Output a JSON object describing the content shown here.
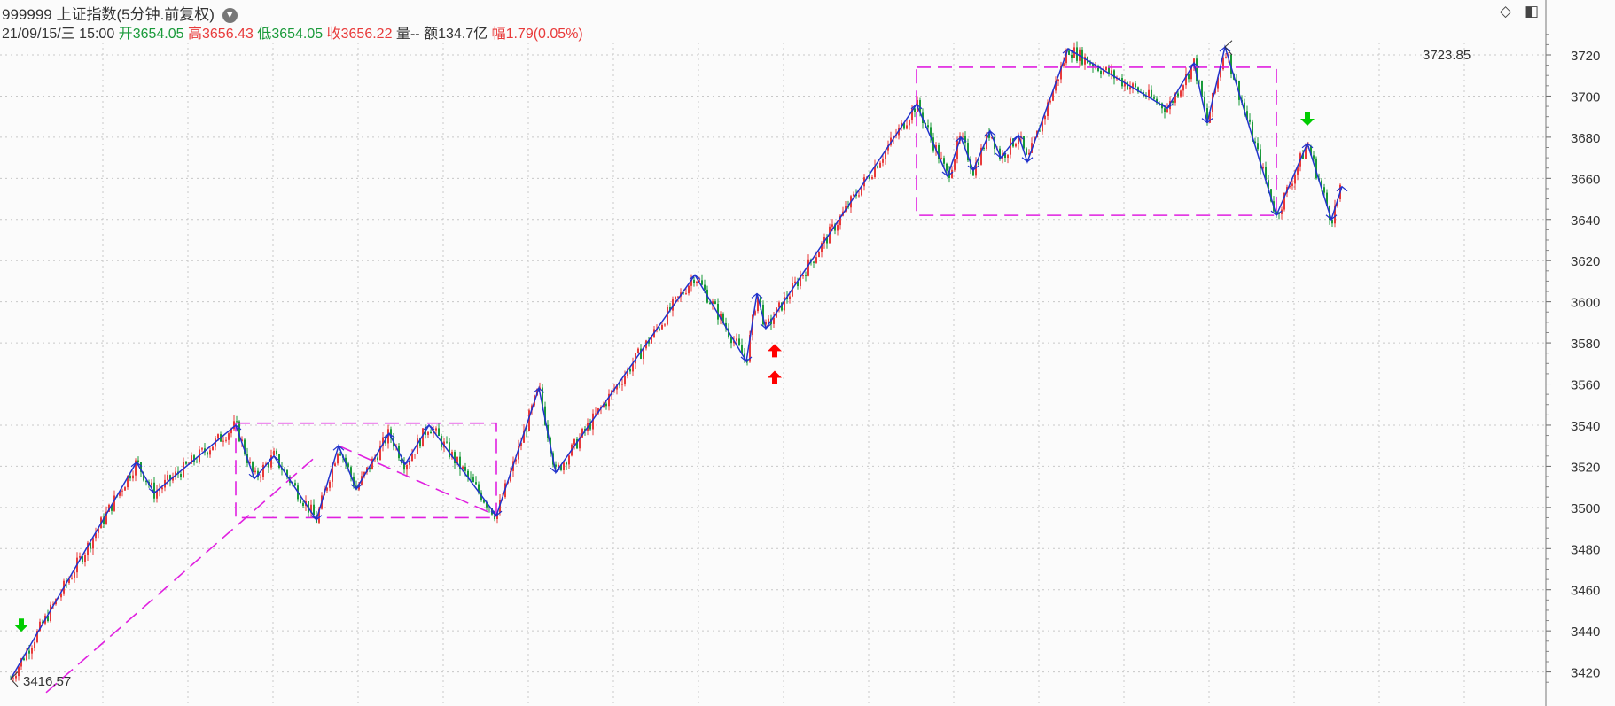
{
  "header": {
    "code": "999999",
    "name": "上证指数",
    "period": "(5分钟.前复权)",
    "date": "21/09/15/三 15:00",
    "open_label": "开",
    "open": "3654.05",
    "high_label": "高",
    "high": "3656.43",
    "low_label": "低",
    "low": "3654.05",
    "close_label": "收",
    "close": "3656.22",
    "volume_label": "量",
    "volume": "--",
    "amount_label": "额",
    "amount": "134.7亿",
    "change_label": "幅",
    "change": "1.79(0.05%)"
  },
  "toolbar": {
    "diamond_icon": "diamond-icon",
    "panel_icon": "panel-toggle-icon"
  },
  "colors": {
    "up": "#e83a3a",
    "down": "#1a9a3a",
    "zigzag": "#2233cc",
    "pattern": "#e020e0",
    "grid": "#c8c8c8",
    "signal_up": "#ff0000",
    "signal_down": "#00cc00"
  },
  "chart_data": {
    "type": "candlestick",
    "ylim": [
      3410,
      3730
    ],
    "yticks": [
      3420,
      3440,
      3460,
      3480,
      3500,
      3520,
      3540,
      3560,
      3580,
      3600,
      3620,
      3640,
      3660,
      3680,
      3700,
      3720
    ],
    "grid": true,
    "annotations": {
      "low_label": "3416.57",
      "high_label": "3723.85"
    },
    "zigzag": [
      [
        0,
        3416.57
      ],
      [
        142,
        3522
      ],
      [
        162,
        3507
      ],
      [
        254,
        3540
      ],
      [
        275,
        3514
      ],
      [
        297,
        3525
      ],
      [
        345,
        3494
      ],
      [
        370,
        3530
      ],
      [
        390,
        3509
      ],
      [
        427,
        3536
      ],
      [
        445,
        3521
      ],
      [
        472,
        3540
      ],
      [
        548,
        3496
      ],
      [
        596,
        3558
      ],
      [
        615,
        3517
      ],
      [
        772,
        3613
      ],
      [
        830,
        3571
      ],
      [
        842,
        3604
      ],
      [
        852,
        3587
      ],
      [
        1022,
        3696
      ],
      [
        1057,
        3661
      ],
      [
        1072,
        3680
      ],
      [
        1086,
        3664
      ],
      [
        1105,
        3683
      ],
      [
        1117,
        3670
      ],
      [
        1137,
        3681
      ],
      [
        1147,
        3668
      ],
      [
        1193,
        3723
      ],
      [
        1305,
        3694
      ],
      [
        1335,
        3716
      ],
      [
        1350,
        3687
      ],
      [
        1370,
        3723.85
      ],
      [
        1428,
        3642
      ],
      [
        1463,
        3677
      ],
      [
        1490,
        3640
      ],
      [
        1502,
        3656
      ]
    ],
    "boxes": [
      {
        "x": [
          254,
          548
        ],
        "y": [
          3495,
          3541
        ]
      },
      {
        "x": [
          1022,
          1428
        ],
        "y": [
          3642,
          3714
        ]
      }
    ],
    "pattern_lines": [
      [
        [
          40,
          3410
        ],
        [
          345,
          3525
        ]
      ],
      [
        [
          370,
          3530
        ],
        [
          548,
          3496
        ]
      ]
    ],
    "signals": [
      {
        "type": "down",
        "x": 12,
        "value": 3443
      },
      {
        "type": "up",
        "x": 862,
        "value": 3576
      },
      {
        "type": "up",
        "x": 862,
        "value": 3563
      },
      {
        "type": "down",
        "x": 1463,
        "value": 3689
      }
    ]
  }
}
